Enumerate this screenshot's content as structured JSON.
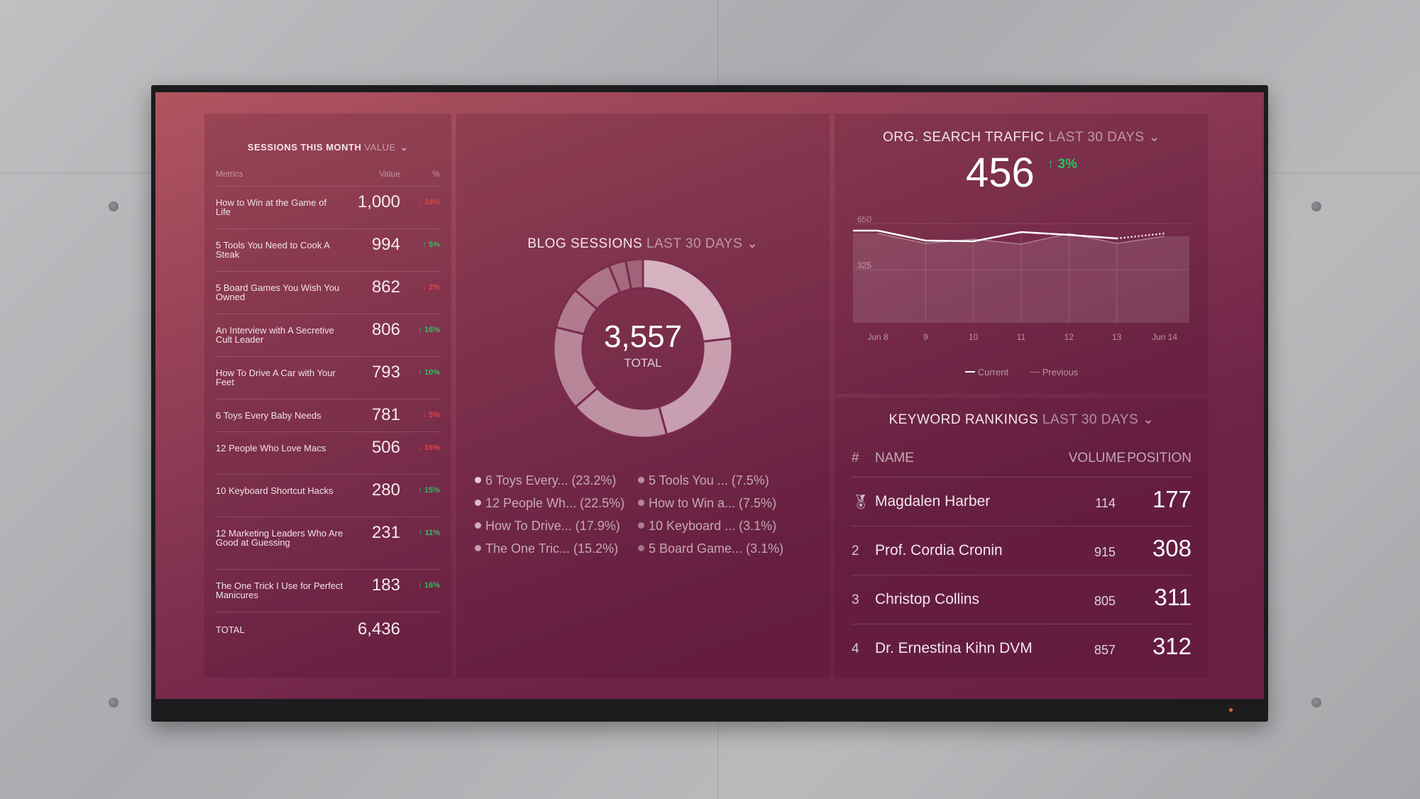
{
  "sessions": {
    "title": "SESSIONS THIS MONTH",
    "filter": "VALUE",
    "col_metrics": "Metrics",
    "col_value": "Value",
    "col_pct": "%",
    "rows": [
      {
        "name": "How to Win at the Game of Life",
        "value": "1,000",
        "change": "↓ 14%",
        "dir": "down"
      },
      {
        "name": "5 Tools You Need to Cook A Steak",
        "value": "994",
        "change": "↑ 5%",
        "dir": "up"
      },
      {
        "name": "5 Board Games You Wish You Owned",
        "value": "862",
        "change": "↓ 2%",
        "dir": "down"
      },
      {
        "name": "An Interview with A Secretive Cult Leader",
        "value": "806",
        "change": "↑ 16%",
        "dir": "up"
      },
      {
        "name": "How To Drive A Car with Your Feet",
        "value": "793",
        "change": "↑ 10%",
        "dir": "up"
      },
      {
        "name": "6 Toys Every Baby Needs",
        "value": "781",
        "change": "↓ 5%",
        "dir": "down"
      },
      {
        "name": "12 People Who Love Macs",
        "value": "506",
        "change": "↓ 16%",
        "dir": "down"
      },
      {
        "name": "10 Keyboard Shortcut Hacks",
        "value": "280",
        "change": "↑ 15%",
        "dir": "up"
      },
      {
        "name": "12 Marketing Leaders Who Are Good at Guessing",
        "value": "231",
        "change": "↑ 11%",
        "dir": "up"
      },
      {
        "name": "The One Trick I Use for Perfect Manicures",
        "value": "183",
        "change": "↑ 16%",
        "dir": "up"
      }
    ],
    "total_label": "TOTAL",
    "total_value": "6,436"
  },
  "blog": {
    "title": "BLOG SESSIONS",
    "period": "LAST 30 DAYS",
    "total": "3,557",
    "total_label": "TOTAL"
  },
  "search": {
    "title": "ORG. SEARCH TRAFFIC",
    "period": "LAST 30 DAYS",
    "value": "456",
    "change": "↑ 3%",
    "legend_current": "Current",
    "legend_previous": "Previous"
  },
  "keywords": {
    "title": "KEYWORD RANKINGS",
    "period": "LAST 30 DAYS",
    "col_rank": "#",
    "col_name": "NAME",
    "col_volume": "VOLUME",
    "col_position": "POSITION",
    "rows": [
      {
        "rank": "medal",
        "name": "Magdalen Harber",
        "volume": "114",
        "position": "177"
      },
      {
        "rank": "2",
        "name": "Prof. Cordia Cronin",
        "volume": "915",
        "position": "308"
      },
      {
        "rank": "3",
        "name": "Christop Collins",
        "volume": "805",
        "position": "311"
      },
      {
        "rank": "4",
        "name": "Dr. Ernestina Kihn DVM",
        "volume": "857",
        "position": "312"
      }
    ]
  },
  "chart_data": [
    {
      "type": "pie",
      "title": "BLOG SESSIONS",
      "categories": [
        "6 Toys Every... (23.2%)",
        "12 People Wh... (22.5%)",
        "How To Drive... (17.9%)",
        "The One Tric... (15.2%)",
        "5 Tools You ... (7.5%)",
        "How to Win a... (7.5%)",
        "10 Keyboard ... (3.1%)",
        "5 Board Game... (3.1%)"
      ],
      "values": [
        23.2,
        22.5,
        17.9,
        15.2,
        7.5,
        7.5,
        3.1,
        3.1
      ]
    },
    {
      "type": "line",
      "title": "ORG. SEARCH TRAFFIC",
      "x": [
        "Jun 8",
        "9",
        "10",
        "11",
        "12",
        "13",
        "Jun 14"
      ],
      "yticks": [
        "650",
        "325"
      ],
      "ylim": [
        0,
        650
      ],
      "series": [
        {
          "name": "Current",
          "values": [
            600,
            530,
            525,
            590,
            570,
            545,
            580
          ]
        },
        {
          "name": "Previous",
          "values": [
            580,
            510,
            540,
            505,
            580,
            510,
            560
          ]
        }
      ]
    }
  ],
  "colors": {
    "up": "#22c45e",
    "down": "#e8403f"
  }
}
